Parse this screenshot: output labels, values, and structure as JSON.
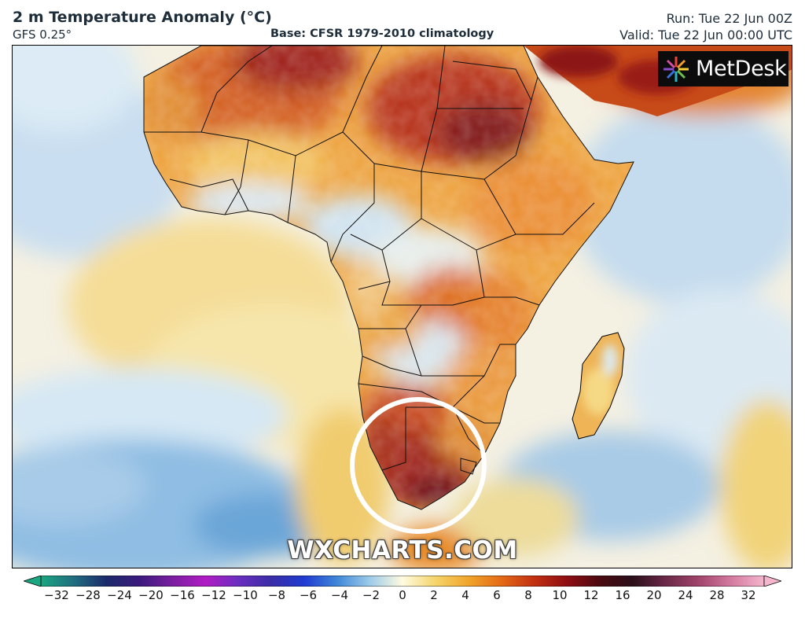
{
  "header": {
    "title": "2 m Temperature Anomaly (°C)",
    "model": "GFS 0.25°",
    "base": "Base: CFSR 1979-2010 climatology",
    "run": "Run: Tue 22 Jun 00Z",
    "valid": "Valid: Tue 22 Jun 00:00 UTC"
  },
  "logo": {
    "text": "MetDesk",
    "icon": "metdesk-burst-icon"
  },
  "watermark": "WXCHARTS.COM",
  "legend": {
    "ticks": [
      "−32",
      "−28",
      "−24",
      "−20",
      "−16",
      "−12",
      "−10",
      "−8",
      "−6",
      "−4",
      "−2",
      "0",
      "2",
      "4",
      "6",
      "8",
      "10",
      "12",
      "16",
      "20",
      "24",
      "28",
      "32"
    ],
    "colors": [
      "#1aa680",
      "#1f6e7f",
      "#1b2a6b",
      "#3b1a7c",
      "#7a1fa0",
      "#b11bc4",
      "#6a2fc0",
      "#3a2ea6",
      "#1f3ad1",
      "#3f86d8",
      "#9ccbe8",
      "#fffbe0",
      "#f5d56a",
      "#f0a52a",
      "#e56a16",
      "#c23010",
      "#8e0e14",
      "#4a0a10",
      "#2a0f1a",
      "#6b2848",
      "#a0446a",
      "#d47aa0",
      "#f4b6cc"
    ]
  },
  "map": {
    "region": "Africa",
    "highlight": "white-circle-southern-africa",
    "colors": {
      "ocean_cold": "#a9cfe8",
      "ocean_cool": "#d6e8f3",
      "ocean_neutral": "#f5f2e6",
      "ocean_warm": "#f3dd93",
      "land_warm": "#eea23b",
      "land_hot": "#d7621c",
      "land_veryhot": "#9d1b12",
      "land_cool": "#cfe2ee"
    }
  }
}
